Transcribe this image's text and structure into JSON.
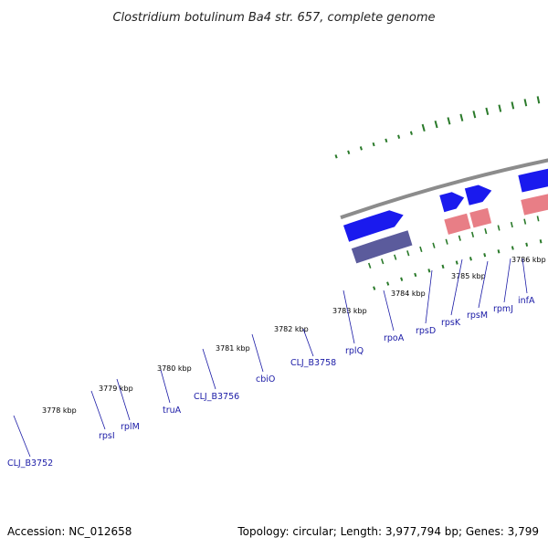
{
  "title": "Clostridium botulinum Ba4 str. 657, complete genome",
  "accession": "Accession: NC_012658",
  "summary": "Topology: circular; Length: 3,977,794 bp; Genes: 3,799",
  "colors": {
    "backbone": "#8c8c8c",
    "forward_cds": "#1a1aee",
    "reverse_gene": "#e87e86",
    "rrna_operon": "#5b5b9c",
    "orange_gene": "#f08c08",
    "gc_dots": "#2a7a2a",
    "label_text": "#1a1aa6"
  },
  "kbp_ticks": [
    "3778 kbp",
    "3779 kbp",
    "3780 kbp",
    "3781 kbp",
    "3782 kbp",
    "3783 kbp",
    "3784 kbp",
    "3785 kbp",
    "3786 kbp"
  ],
  "gene_labels": [
    "CLJ_B3752",
    "rpsI",
    "rplM",
    "truA",
    "CLJ_B3756",
    "cbiO",
    "CLJ_B3758",
    "rplQ",
    "rpoA",
    "rpsD",
    "rpsK",
    "rpsM",
    "rpmJ",
    "infA"
  ]
}
